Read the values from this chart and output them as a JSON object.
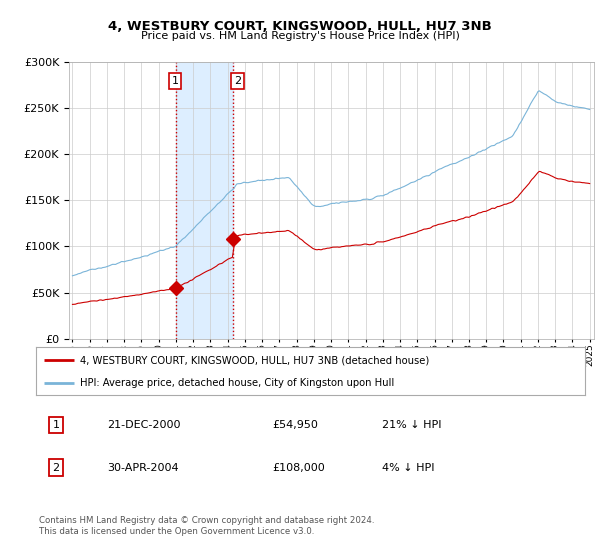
{
  "title": "4, WESTBURY COURT, KINGSWOOD, HULL, HU7 3NB",
  "subtitle": "Price paid vs. HM Land Registry's House Price Index (HPI)",
  "legend_line1": "4, WESTBURY COURT, KINGSWOOD, HULL, HU7 3NB (detached house)",
  "legend_line2": "HPI: Average price, detached house, City of Kingston upon Hull",
  "sale1_label": "1",
  "sale1_date": "21-DEC-2000",
  "sale1_price": "£54,950",
  "sale1_hpi": "21% ↓ HPI",
  "sale2_label": "2",
  "sale2_date": "30-APR-2004",
  "sale2_price": "£108,000",
  "sale2_hpi": "4% ↓ HPI",
  "footnote": "Contains HM Land Registry data © Crown copyright and database right 2024.\nThis data is licensed under the Open Government Licence v3.0.",
  "hpi_color": "#7ab4d8",
  "sale_color": "#cc0000",
  "highlight_color": "#ddeeff",
  "sale1_x": 2001.0,
  "sale2_x": 2004.33,
  "sale1_price_val": 54950,
  "sale2_price_val": 108000,
  "ylim": [
    0,
    300000
  ],
  "yticks": [
    0,
    50000,
    100000,
    150000,
    200000,
    250000,
    300000
  ],
  "xmin": 1995.0,
  "xmax": 2025.25,
  "background_color": "#ffffff",
  "grid_color": "#cccccc"
}
